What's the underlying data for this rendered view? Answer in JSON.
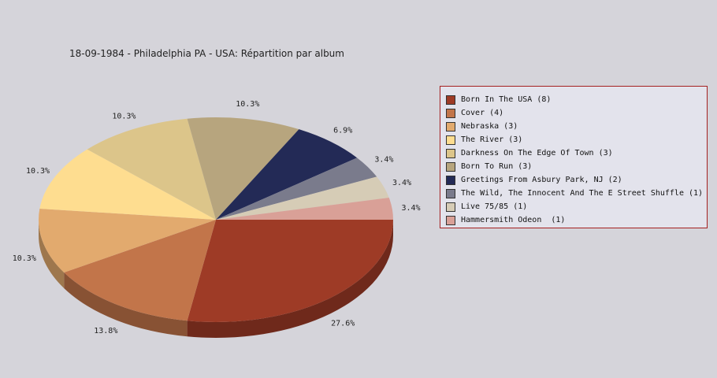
{
  "chart_data": {
    "type": "pie",
    "title": "18-09-1984 - Philadelphia PA - USA:  Répartition par album",
    "legend_position": "right",
    "slices": [
      {
        "label": "Born In The USA (8)",
        "value": 8,
        "percent_label": "27.6%",
        "color": "#9e3b26"
      },
      {
        "label": "Cover (4)",
        "value": 4,
        "percent_label": "13.8%",
        "color": "#c2754a"
      },
      {
        "label": "Nebraska (3)",
        "value": 3,
        "percent_label": "10.3%",
        "color": "#e2aa6e"
      },
      {
        "label": "The River (3)",
        "value": 3,
        "percent_label": "10.3%",
        "color": "#fedd90"
      },
      {
        "label": "Darkness On The Edge Of Town (3)",
        "value": 3,
        "percent_label": "10.3%",
        "color": "#dcc58a"
      },
      {
        "label": "Born To Run (3)",
        "value": 3,
        "percent_label": "10.3%",
        "color": "#b7a57e"
      },
      {
        "label": "Greetings From Asbury Park, NJ (2)",
        "value": 2,
        "percent_label": "6.9%",
        "color": "#232a56"
      },
      {
        "label": "The Wild, The Innocent And The E Street Shuffle (1)",
        "value": 1,
        "percent_label": "3.4%",
        "color": "#7a7b8c"
      },
      {
        "label": "Live 75/85 (1)",
        "value": 1,
        "percent_label": "3.4%",
        "color": "#d6ccb6"
      },
      {
        "label": "Hammersmith Odeon  (1)",
        "value": 1,
        "percent_label": "3.4%",
        "color": "#d9a097"
      }
    ]
  }
}
